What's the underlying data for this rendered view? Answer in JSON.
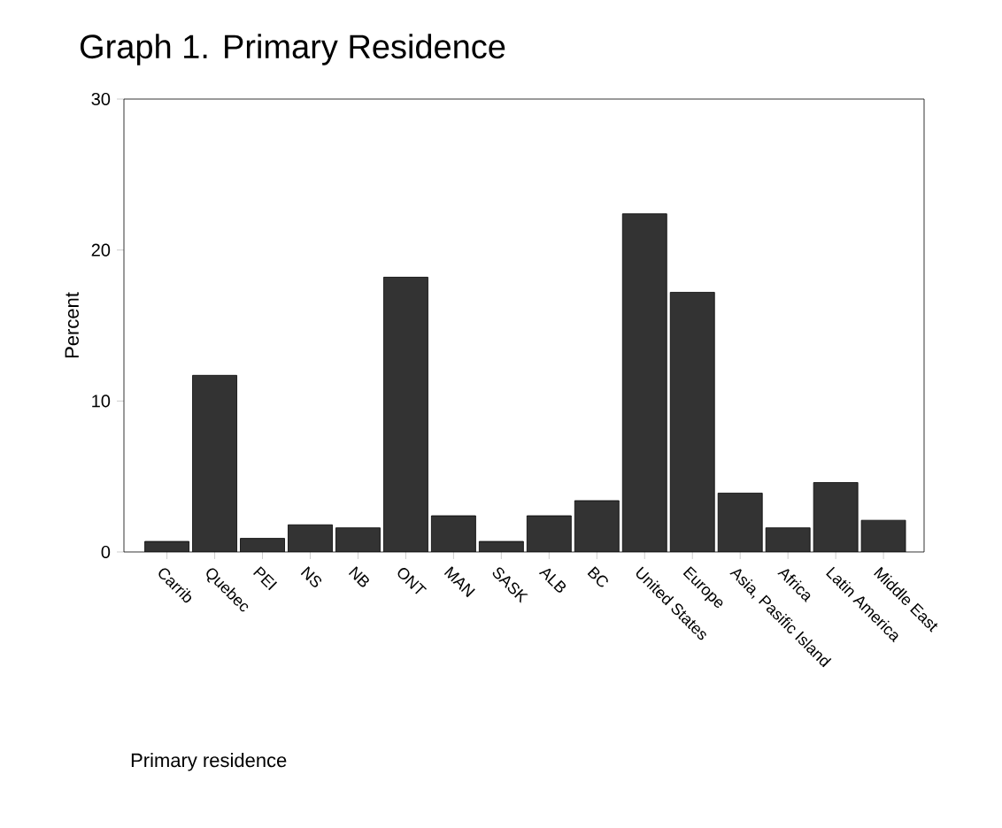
{
  "chart_data": {
    "type": "bar",
    "title": "Graph 1. Primary Residence",
    "xlabel": "Primary residence",
    "ylabel": "Percent",
    "categories": [
      "Carrib",
      "Quebec",
      "PEI",
      "NS",
      "NB",
      "ONT",
      "MAN",
      "SASK",
      "ALB",
      "BC",
      "United States",
      "Europe",
      "Asia, Pasific Island",
      "Africa",
      "Latin America",
      "Middle East"
    ],
    "values": [
      0.7,
      11.7,
      0.9,
      1.8,
      1.6,
      18.2,
      2.4,
      0.7,
      2.4,
      3.4,
      22.4,
      17.2,
      3.9,
      1.6,
      4.6,
      2.1
    ],
    "color": "#333333",
    "ylim": [
      0,
      30
    ],
    "yticks": [
      0,
      10,
      20,
      30
    ]
  }
}
